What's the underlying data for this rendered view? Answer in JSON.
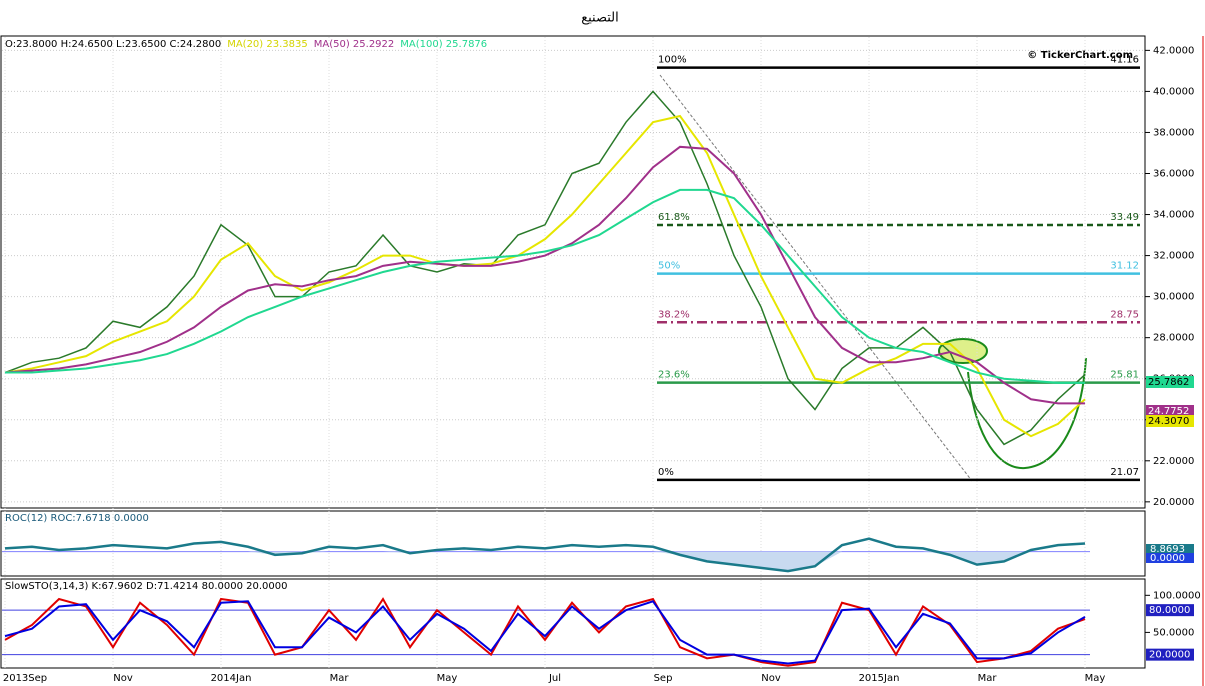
{
  "chart_data": {
    "type": "line",
    "title": "التصنيع",
    "watermark": "© TickerChart.com",
    "legend": [
      {
        "text": "O:23.8000 H:24.6500 L:23.6500 C:24.2800",
        "color": "#000000"
      },
      {
        "text": "MA(20) 23.3835",
        "color": "#d4d400"
      },
      {
        "text": "MA(50) 25.2922",
        "color": "#a0308a"
      },
      {
        "text": "MA(100) 25.7876",
        "color": "#20d890"
      }
    ],
    "categories": [
      "2013Sep",
      null,
      null,
      null,
      "Nov",
      null,
      null,
      null,
      "2014Jan",
      null,
      null,
      null,
      "Mar",
      null,
      null,
      null,
      "May",
      null,
      null,
      null,
      "Jul",
      null,
      null,
      null,
      "Sep",
      null,
      null,
      null,
      "Nov",
      null,
      null,
      null,
      "2015Jan",
      null,
      null,
      null,
      "Mar",
      null,
      null,
      null,
      "May"
    ],
    "series": [
      {
        "name": "Close",
        "color": "#2a7a2a",
        "values": [
          26.3,
          26.8,
          27.0,
          27.5,
          28.8,
          28.5,
          29.5,
          31.0,
          33.5,
          32.5,
          30.0,
          30.0,
          31.2,
          31.5,
          33.0,
          31.5,
          31.2,
          31.6,
          31.5,
          33.0,
          33.5,
          36.0,
          36.5,
          38.5,
          40.0,
          38.5,
          35.5,
          32.0,
          29.5,
          26.0,
          24.5,
          26.5,
          27.5,
          27.5,
          28.5,
          27.3,
          24.5,
          22.8,
          23.5,
          25.0,
          26.2
        ]
      },
      {
        "name": "MA(20)",
        "color": "#e6e600",
        "values": [
          26.3,
          26.5,
          26.8,
          27.1,
          27.8,
          28.3,
          28.8,
          30.0,
          31.8,
          32.6,
          31.0,
          30.3,
          30.7,
          31.3,
          32.0,
          32.0,
          31.6,
          31.5,
          31.6,
          32.0,
          32.8,
          34.0,
          35.5,
          37.0,
          38.5,
          38.8,
          37.0,
          34.0,
          31.0,
          28.5,
          26.0,
          25.8,
          26.5,
          27.0,
          27.7,
          27.7,
          26.5,
          24.0,
          23.2,
          23.8,
          25.0
        ]
      },
      {
        "name": "MA(50)",
        "color": "#a0308a",
        "values": [
          26.3,
          26.4,
          26.5,
          26.7,
          27.0,
          27.3,
          27.8,
          28.5,
          29.5,
          30.3,
          30.6,
          30.5,
          30.8,
          31.0,
          31.5,
          31.7,
          31.6,
          31.5,
          31.5,
          31.7,
          32.0,
          32.6,
          33.5,
          34.8,
          36.3,
          37.3,
          37.2,
          36.0,
          34.0,
          31.5,
          29.0,
          27.5,
          26.8,
          26.8,
          27.0,
          27.3,
          26.8,
          25.8,
          25.0,
          24.8,
          24.8
        ]
      },
      {
        "name": "MA(100)",
        "color": "#20d890",
        "values": [
          26.3,
          26.3,
          26.4,
          26.5,
          26.7,
          26.9,
          27.2,
          27.7,
          28.3,
          29.0,
          29.5,
          30.0,
          30.4,
          30.8,
          31.2,
          31.5,
          31.7,
          31.8,
          31.9,
          32.0,
          32.2,
          32.5,
          33.0,
          33.8,
          34.6,
          35.2,
          35.2,
          34.8,
          33.5,
          32.0,
          30.5,
          29.0,
          28.0,
          27.5,
          27.3,
          26.8,
          26.3,
          26.0,
          25.9,
          25.8,
          25.8
        ]
      }
    ],
    "ylim": [
      19.7,
      42.7
    ],
    "yticks": [
      {
        "value": 20,
        "label": "20.0000"
      },
      {
        "value": 22,
        "label": "22.0000"
      },
      {
        "value": 24,
        "label": "24.0000"
      },
      {
        "value": 26,
        "label": "26.0000"
      },
      {
        "value": 28,
        "label": "28.0000"
      },
      {
        "value": 30,
        "label": "30.0000"
      },
      {
        "value": 32,
        "label": "32.0000"
      },
      {
        "value": 34,
        "label": "34.0000"
      },
      {
        "value": 36,
        "label": "36.0000"
      },
      {
        "value": 38,
        "label": "38.0000"
      },
      {
        "value": 40,
        "label": "40.0000"
      },
      {
        "value": 42,
        "label": "42.0000"
      }
    ],
    "grid": true,
    "fibonacci": [
      {
        "level": "100%",
        "value": 41.16,
        "color": "#000000",
        "dash": ""
      },
      {
        "level": "61.8%",
        "value": 33.49,
        "color": "#1a5a1a",
        "dash": "6,4"
      },
      {
        "level": "50%",
        "value": 31.12,
        "color": "#40c0e0",
        "dash": ""
      },
      {
        "level": "38.2%",
        "value": 28.75,
        "color": "#a0306a",
        "dash": "10,4,2,4"
      },
      {
        "level": "23.6%",
        "value": 25.81,
        "color": "#2a9a4a",
        "dash": ""
      },
      {
        "level": "0%",
        "value": 21.07,
        "color": "#000000",
        "dash": ""
      }
    ],
    "price_tags": [
      {
        "text": "25.7862",
        "color": "#20d890"
      },
      {
        "text": "24.7752",
        "color": "#a0308a"
      },
      {
        "text": "24.3070",
        "color": "#e6e600"
      }
    ],
    "roc": {
      "legend": "ROC(12) ROC:7.6718 0.0000",
      "color": "#1a7a8a",
      "ylim": [
        -15,
        25
      ],
      "values": [
        2,
        3,
        1,
        2,
        4,
        3,
        2,
        5,
        6,
        3,
        -2,
        -1,
        3,
        2,
        4,
        -1,
        1,
        2,
        1,
        3,
        2,
        4,
        3,
        4,
        3,
        -2,
        -6,
        -8,
        -10,
        -12,
        -9,
        4,
        8,
        3,
        2,
        -2,
        -8,
        -6,
        1,
        4,
        5
      ],
      "tags": [
        "8.8693",
        "0.0000"
      ]
    },
    "stochastic": {
      "legend": "SlowSTO(3,14,3) K:67.9602 D:71.4214 80.0000 20.0000",
      "ylim": [
        2,
        122
      ],
      "yticks": [
        {
          "value": 50,
          "label": "50.0000"
        },
        {
          "value": 100,
          "label": "100.0000"
        }
      ],
      "levels": [
        {
          "value": 80,
          "label": "80.0000"
        },
        {
          "value": 20,
          "label": "20.0000"
        }
      ],
      "series": [
        {
          "name": "K",
          "color": "#e00000",
          "values": [
            40,
            60,
            95,
            85,
            30,
            90,
            60,
            20,
            95,
            90,
            20,
            30,
            80,
            40,
            95,
            30,
            80,
            50,
            20,
            85,
            40,
            90,
            50,
            85,
            95,
            30,
            15,
            20,
            10,
            5,
            10,
            90,
            80,
            20,
            85,
            60,
            10,
            15,
            25,
            55,
            68
          ]
        },
        {
          "name": "D",
          "color": "#0000e0",
          "values": [
            45,
            55,
            85,
            88,
            40,
            80,
            65,
            30,
            90,
            92,
            30,
            30,
            70,
            50,
            85,
            40,
            75,
            55,
            25,
            75,
            45,
            85,
            55,
            80,
            92,
            40,
            20,
            20,
            12,
            8,
            12,
            80,
            82,
            30,
            75,
            62,
            15,
            15,
            22,
            50,
            71
          ]
        }
      ]
    }
  }
}
